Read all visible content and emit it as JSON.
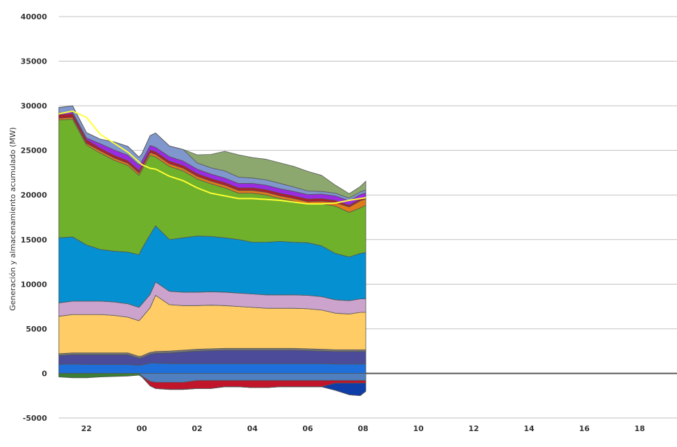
{
  "chart_data": {
    "type": "area",
    "title": "",
    "xlabel": "",
    "ylabel": "Generación y almacenamiento acumulado (MW)",
    "ylim": [
      -5000,
      40000
    ],
    "yticks": [
      -5000,
      0,
      5000,
      10000,
      15000,
      20000,
      25000,
      30000,
      35000,
      40000
    ],
    "xlim_hours": [
      21,
      35.6
    ],
    "xticks": [
      {
        "h": 22,
        "label": "22"
      },
      {
        "h": 24,
        "label": "00"
      },
      {
        "h": 26,
        "label": "02"
      },
      {
        "h": 28,
        "label": "04"
      },
      {
        "h": 30,
        "label": "06"
      },
      {
        "h": 32,
        "label": "08"
      },
      {
        "h": 34,
        "label": "10"
      },
      {
        "h": 36,
        "label": "12"
      },
      {
        "h": 38,
        "label": "14"
      },
      {
        "h": 40,
        "label": "16"
      },
      {
        "h": 42,
        "label": "18"
      }
    ],
    "grid": true,
    "x": [
      21.0,
      21.5,
      22.0,
      22.5,
      23.0,
      23.5,
      23.9,
      24.0,
      24.3,
      24.5,
      25.0,
      25.5,
      26.0,
      26.5,
      27.0,
      27.5,
      28.0,
      28.5,
      29.0,
      29.5,
      30.0,
      30.5,
      31.0,
      31.5,
      31.9,
      32.1
    ],
    "positive_series": [
      {
        "color": "#1e6fd9",
        "values": [
          1000,
          1050,
          1000,
          1000,
          1000,
          1000,
          900,
          950,
          1150,
          1150,
          1100,
          1100,
          1100,
          1100,
          1100,
          1100,
          1100,
          1100,
          1100,
          1100,
          1100,
          1100,
          1050,
          1050,
          1050,
          1050
        ]
      },
      {
        "color": "#4b4b99",
        "values": [
          1000,
          1050,
          1100,
          1100,
          1100,
          1100,
          800,
          800,
          1000,
          1100,
          1200,
          1300,
          1400,
          1450,
          1500,
          1500,
          1500,
          1500,
          1500,
          1500,
          1450,
          1400,
          1400,
          1400,
          1400,
          1400
        ]
      },
      {
        "color": "#7a7a7a",
        "values": [
          200,
          200,
          200,
          200,
          200,
          200,
          200,
          200,
          200,
          200,
          200,
          200,
          200,
          200,
          200,
          200,
          200,
          200,
          200,
          200,
          200,
          200,
          200,
          200,
          200,
          200
        ]
      },
      {
        "color": "#ffcc66",
        "values": [
          4200,
          4300,
          4300,
          4300,
          4200,
          4000,
          4000,
          4300,
          5000,
          6300,
          5200,
          5000,
          4900,
          4900,
          4800,
          4700,
          4600,
          4500,
          4500,
          4500,
          4500,
          4400,
          4100,
          4000,
          4200,
          4200
        ]
      },
      {
        "color": "#cba3cd",
        "values": [
          1500,
          1500,
          1500,
          1500,
          1500,
          1500,
          1500,
          1500,
          1500,
          1500,
          1500,
          1500,
          1500,
          1500,
          1500,
          1500,
          1500,
          1500,
          1500,
          1500,
          1500,
          1500,
          1500,
          1500,
          1500,
          1500
        ]
      },
      {
        "color": "#0591d1",
        "values": [
          7300,
          7200,
          6300,
          5800,
          5700,
          5800,
          5900,
          6200,
          6700,
          6300,
          5800,
          6100,
          6300,
          6200,
          6100,
          6000,
          5800,
          5900,
          6000,
          5900,
          5900,
          5700,
          5200,
          4900,
          5100,
          5200
        ]
      },
      {
        "color": "#6fb12b",
        "values": [
          13200,
          13200,
          11200,
          10800,
          10200,
          9700,
          8900,
          8800,
          8900,
          7700,
          8200,
          7500,
          6400,
          5900,
          5600,
          5200,
          5500,
          5300,
          4800,
          4600,
          4300,
          4700,
          5300,
          5000,
          5100,
          5300
        ]
      },
      {
        "color": "#e07b1a",
        "values": [
          200,
          200,
          200,
          250,
          250,
          250,
          250,
          250,
          300,
          300,
          300,
          300,
          300,
          300,
          300,
          300,
          300,
          300,
          300,
          300,
          300,
          300,
          400,
          600,
          800,
          700
        ]
      },
      {
        "color": "#b01c2e",
        "values": [
          400,
          400,
          400,
          300,
          300,
          300,
          300,
          300,
          300,
          300,
          300,
          300,
          300,
          300,
          300,
          300,
          300,
          300,
          300,
          300,
          300,
          300,
          250,
          200,
          200,
          200
        ]
      },
      {
        "color": "#9b2be3",
        "values": [
          200,
          200,
          200,
          500,
          600,
          600,
          600,
          500,
          500,
          500,
          500,
          500,
          500,
          500,
          500,
          500,
          500,
          500,
          500,
          500,
          500,
          500,
          500,
          500,
          500,
          500
        ]
      },
      {
        "color": "#7f97cc",
        "values": [
          600,
          700,
          600,
          500,
          900,
          1000,
          900,
          800,
          1100,
          1600,
          1200,
          1300,
          700,
          700,
          800,
          700,
          600,
          600,
          600,
          500,
          400,
          300,
          300,
          300,
          300,
          300
        ]
      },
      {
        "color": "#8ca86f",
        "values": [
          0,
          0,
          0,
          0,
          0,
          0,
          0,
          0,
          0,
          0,
          0,
          0,
          900,
          1500,
          2200,
          2500,
          2300,
          2300,
          2300,
          2300,
          2200,
          1800,
          900,
          500,
          600,
          1000
        ]
      }
    ],
    "negative_series": [
      {
        "color": "#4f7fbf",
        "values": [
          0,
          0,
          0,
          0,
          0,
          0,
          0,
          -300,
          -900,
          -1000,
          -1000,
          -1000,
          -800,
          -800,
          -800,
          -800,
          -800,
          -800,
          -800,
          -800,
          -800,
          -800,
          -800,
          -800,
          -800,
          -800
        ]
      },
      {
        "color": "#c0152a",
        "values": [
          0,
          0,
          0,
          0,
          0,
          0,
          0,
          0,
          -500,
          -700,
          -800,
          -800,
          -900,
          -900,
          -700,
          -700,
          -800,
          -800,
          -700,
          -700,
          -700,
          -700,
          -300,
          -300,
          -300,
          -300
        ]
      },
      {
        "color": "#0f3ea8",
        "values": [
          0,
          0,
          0,
          0,
          0,
          0,
          0,
          0,
          0,
          0,
          0,
          0,
          0,
          0,
          0,
          0,
          0,
          0,
          0,
          0,
          0,
          0,
          -800,
          -1300,
          -1400,
          -900
        ]
      },
      {
        "color": "#3b7d34",
        "values": [
          -400,
          -500,
          -500,
          -400,
          -350,
          -300,
          -200,
          -100,
          0,
          0,
          0,
          0,
          0,
          0,
          0,
          0,
          0,
          0,
          0,
          0,
          0,
          0,
          0,
          0,
          0,
          0
        ]
      }
    ],
    "demand_line": {
      "color": "#ffff33",
      "values": [
        29100,
        29400,
        28700,
        26800,
        25800,
        24800,
        23700,
        23400,
        23000,
        22900,
        22100,
        21600,
        20800,
        20200,
        19900,
        19600,
        19600,
        19500,
        19400,
        19200,
        19000,
        19000,
        19100,
        19400,
        19600,
        19700
      ]
    }
  }
}
